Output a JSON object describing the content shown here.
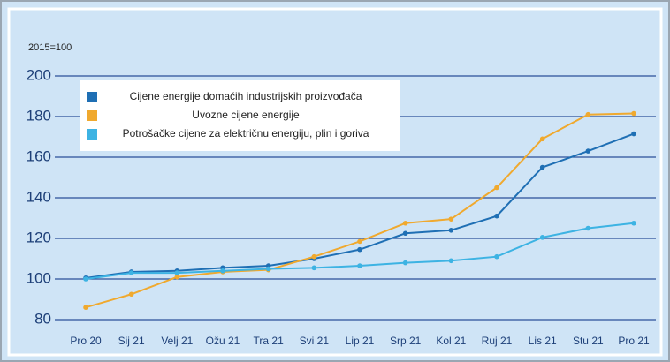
{
  "chart_data": {
    "type": "line",
    "ylabel": "2015=100",
    "categories": [
      "Pro 20",
      "Sij 21",
      "Velj 21",
      "Ožu 21",
      "Tra 21",
      "Svi 21",
      "Lip 21",
      "Srp 21",
      "Kol 21",
      "Ruj 21",
      "Lis 21",
      "Stu 21",
      "Pro 21"
    ],
    "series": [
      {
        "name": "Cijene energije domaćih industrijskih proizvođača",
        "color": "#1f6fb4",
        "values": [
          100.5,
          103.5,
          104,
          105.5,
          106.5,
          110,
          114.5,
          122.5,
          124,
          131,
          155,
          163,
          171.5
        ]
      },
      {
        "name": "Uvozne cijene energije",
        "color": "#f0a92e",
        "values": [
          86,
          92.5,
          101,
          103.5,
          104.5,
          111,
          118.5,
          127.5,
          129.5,
          145,
          169,
          181,
          181.5
        ]
      },
      {
        "name": "Potrošačke cijene za električnu energiju, plin i goriva",
        "color": "#3db3e3",
        "values": [
          100,
          103,
          103,
          104,
          105,
          105.5,
          106.5,
          108,
          109,
          111,
          120.5,
          125,
          127.5
        ]
      }
    ],
    "ylim": [
      80,
      200
    ],
    "yticks": [
      80,
      100,
      120,
      140,
      160,
      180,
      200
    ],
    "grid": true,
    "legend": "top-left"
  }
}
